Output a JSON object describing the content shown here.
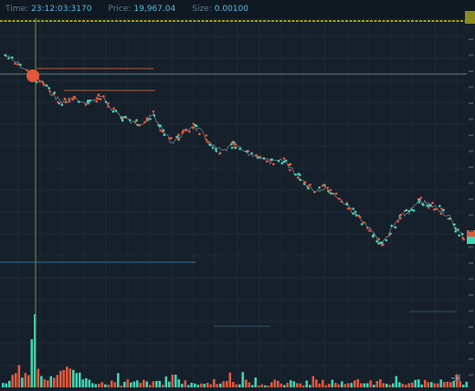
{
  "infobar": {
    "time_label": "Time:",
    "time_value": "23:12:03:3170",
    "price_label": "Price:",
    "price_value": "19,967.04",
    "size_label": "Size:",
    "size_value": "0.00100"
  },
  "colors": {
    "background": "#16202b",
    "grid": "#1d2935",
    "up": "#3fd4b5",
    "down": "#e2583c",
    "crosshair": "#7d8f3a",
    "yellow_line": "#c8c41e",
    "accent_text": "#53b8de"
  },
  "icons": {
    "scroll_end": "scroll-to-end-icon"
  }
}
